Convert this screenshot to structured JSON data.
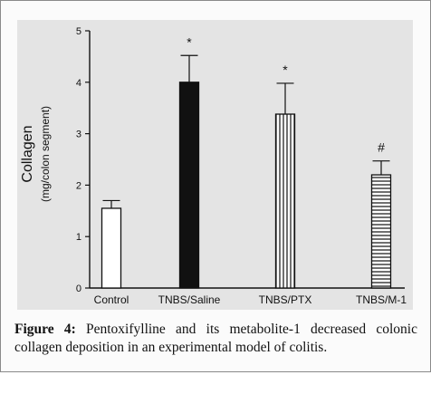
{
  "chart_data": {
    "type": "bar",
    "categories": [
      "Control",
      "TNBS/Saline",
      "TNBS/PTX",
      "TNBS/M-1"
    ],
    "values": [
      1.55,
      4.0,
      3.38,
      2.2
    ],
    "errors": [
      0.15,
      0.52,
      0.6,
      0.27
    ],
    "significance": [
      "",
      "*",
      "*",
      "#"
    ],
    "bar_fills": [
      "empty",
      "solid-black",
      "vertical-lines",
      "horizontal-lines"
    ],
    "ylabel": "Collagen",
    "ylabel_sub": "(mg/colon segment)",
    "ylim": [
      0,
      5
    ],
    "yticks": [
      "0",
      "1",
      "2",
      "3",
      "4",
      "5"
    ],
    "grid": false,
    "colors": {
      "ink": "#111111",
      "bar_bg": "#ffffff",
      "photo_bg": "#e4e4e4"
    }
  },
  "caption": {
    "label": "Figure 4:",
    "text": " Pentoxifylline and its metabolite-1 decreased colonic collagen deposition in an experimental model of colitis."
  }
}
